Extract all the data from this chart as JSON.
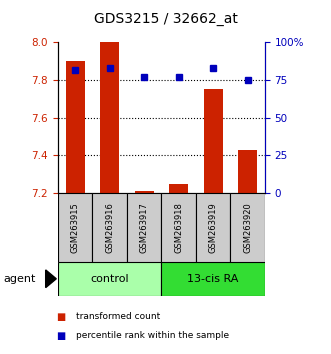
{
  "title": "GDS3215 / 32662_at",
  "samples": [
    "GSM263915",
    "GSM263916",
    "GSM263917",
    "GSM263918",
    "GSM263919",
    "GSM263920"
  ],
  "transformed_counts": [
    7.9,
    8.0,
    7.21,
    7.25,
    7.75,
    7.43
  ],
  "percentile_ranks": [
    82,
    83,
    77,
    77,
    83,
    75
  ],
  "ylim_left": [
    7.2,
    8.0
  ],
  "ylim_right": [
    0,
    100
  ],
  "yticks_left": [
    7.2,
    7.4,
    7.6,
    7.8,
    8.0
  ],
  "yticks_right": [
    0,
    25,
    50,
    75,
    100
  ],
  "ytick_labels_right": [
    "0",
    "25",
    "50",
    "75",
    "100%"
  ],
  "bar_color": "#cc2200",
  "dot_color": "#0000bb",
  "groups": [
    {
      "label": "control",
      "color": "#aaffaa"
    },
    {
      "label": "13-cis RA",
      "color": "#33dd33"
    }
  ],
  "agent_label": "agent",
  "legend_items": [
    {
      "color": "#cc2200",
      "label": "transformed count"
    },
    {
      "color": "#0000bb",
      "label": "percentile rank within the sample"
    }
  ],
  "tick_label_color_left": "#cc2200",
  "tick_label_color_right": "#0000bb",
  "sample_bg_color": "#cccccc",
  "bar_width": 0.55
}
